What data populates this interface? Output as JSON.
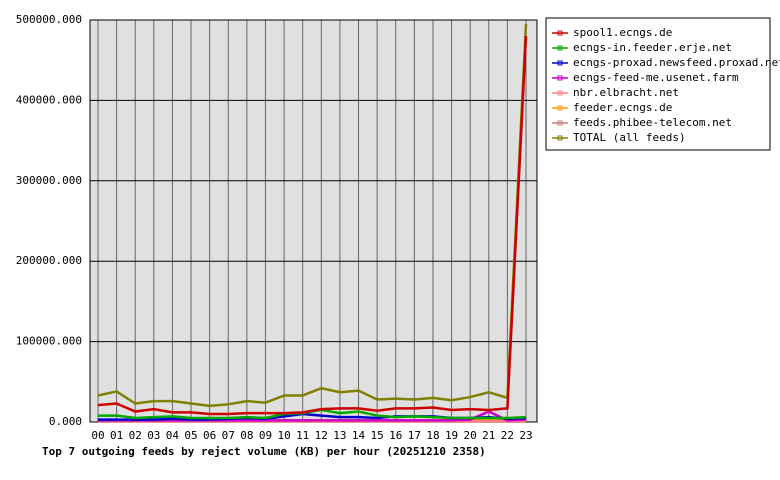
{
  "chart_data": {
    "type": "line",
    "title": "Top 7 outgoing feeds by reject volume (KB) per hour (20251210 2358)",
    "categories": [
      "00",
      "01",
      "02",
      "03",
      "04",
      "05",
      "06",
      "07",
      "08",
      "09",
      "10",
      "11",
      "12",
      "13",
      "14",
      "15",
      "16",
      "17",
      "18",
      "19",
      "20",
      "21",
      "22",
      "23"
    ],
    "ylim": [
      0,
      500000
    ],
    "yticks": [
      {
        "value": 0,
        "label": "0.000"
      },
      {
        "value": 100000,
        "label": "100000.000"
      },
      {
        "value": 200000,
        "label": "200000.000"
      },
      {
        "value": 300000,
        "label": "300000.000"
      },
      {
        "value": 400000,
        "label": "400000.000"
      },
      {
        "value": 500000,
        "label": "500000.000"
      }
    ],
    "grid": true,
    "legend": "right",
    "series": [
      {
        "name": "spool1.ecngs.de",
        "color": "#cc0000",
        "values": [
          21000,
          23000,
          13000,
          16000,
          12000,
          12000,
          10000,
          10000,
          11000,
          11000,
          11000,
          12000,
          16000,
          17000,
          17000,
          14000,
          17000,
          17000,
          18000,
          15000,
          16000,
          15000,
          17000,
          480000
        ]
      },
      {
        "name": "ecngs-in.feeder.erje.net",
        "color": "#00aa00",
        "values": [
          8000,
          8000,
          5000,
          6000,
          7000,
          5000,
          5000,
          5000,
          6000,
          5000,
          10000,
          11000,
          15000,
          11000,
          13000,
          8000,
          6000,
          7000,
          6000,
          5000,
          5000,
          5000,
          5000,
          6000
        ]
      },
      {
        "name": "ecngs-proxad.newsfeed.proxad.net",
        "color": "#0000cc",
        "values": [
          3000,
          3000,
          3000,
          3000,
          4000,
          3000,
          3000,
          4000,
          5000,
          4000,
          7000,
          10000,
          8000,
          6000,
          6000,
          5000,
          7000,
          7000,
          7000,
          5000,
          5000,
          6000,
          4000,
          5000
        ]
      },
      {
        "name": "ecngs-feed-me.usenet.farm",
        "color": "#cc00cc",
        "values": [
          2000,
          2000,
          2000,
          2000,
          2000,
          2000,
          2000,
          2000,
          2000,
          2000,
          2000,
          2000,
          2000,
          2000,
          2000,
          2000,
          2000,
          2000,
          2000,
          2000,
          3000,
          13000,
          2000,
          3000
        ]
      },
      {
        "name": "nbr.elbracht.net",
        "color": "#ff8080",
        "values": [
          1000,
          1000,
          1000,
          1000,
          1000,
          1000,
          1000,
          1000,
          1000,
          1000,
          1000,
          1000,
          1000,
          1000,
          1000,
          1000,
          1000,
          1000,
          1000,
          1000,
          1000,
          1000,
          1000,
          1000
        ]
      },
      {
        "name": "feeder.ecngs.de",
        "color": "#ff9900",
        "values": [
          2000,
          2000,
          2000,
          2000,
          2000,
          2000,
          2000,
          2000,
          2000,
          2000,
          2000,
          2000,
          2000,
          2000,
          2000,
          2000,
          2000,
          2000,
          2000,
          2000,
          2000,
          2000,
          2000,
          2000
        ]
      },
      {
        "name": "feeds.phibee-telecom.net",
        "color": "#c08080",
        "values": [
          500,
          500,
          500,
          500,
          500,
          500,
          500,
          500,
          500,
          500,
          500,
          500,
          500,
          500,
          500,
          500,
          500,
          500,
          500,
          500,
          500,
          500,
          500,
          500
        ]
      },
      {
        "name": "TOTAL (all feeds)",
        "color": "#808000",
        "values": [
          33000,
          38000,
          23000,
          26000,
          26000,
          23000,
          20000,
          22000,
          26000,
          24000,
          33000,
          33000,
          42000,
          37000,
          39000,
          28000,
          29000,
          28000,
          30000,
          27000,
          31000,
          37000,
          30000,
          495000
        ]
      }
    ]
  }
}
